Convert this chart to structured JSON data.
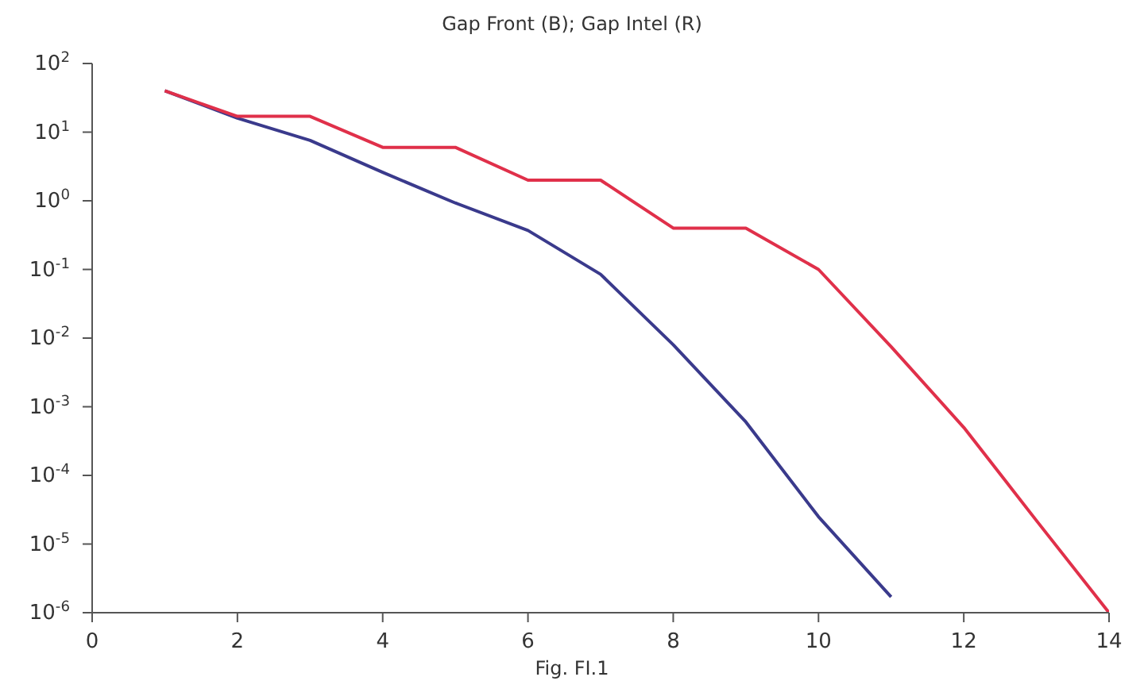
{
  "chart_data": {
    "type": "line",
    "title": "Gap Front (B); Gap Intel (R)",
    "xlabel": "Fig. FI.1",
    "log": "y",
    "grid": false,
    "marker": "none",
    "line_style": "solid",
    "xlim": [
      0,
      14
    ],
    "xticks": [
      0,
      2,
      4,
      6,
      8,
      10,
      12,
      14
    ],
    "ylim": [
      1e-06,
      100
    ],
    "yticks": [
      {
        "value": 1e-06,
        "label": "10$^{-6}$"
      },
      {
        "value": 1e-05,
        "label": "10$^{-5}$"
      },
      {
        "value": 0.0001,
        "label": "10$^{-4}$"
      },
      {
        "value": 0.001,
        "label": "10$^{-3}$"
      },
      {
        "value": 0.01,
        "label": "10$^{-2}$"
      },
      {
        "value": 0.1,
        "label": "10$^{-1}$"
      },
      {
        "value": 1,
        "label": "10$^{0}$"
      },
      {
        "value": 10,
        "label": "10$^{1}$"
      },
      {
        "value": 100,
        "label": "10$^{2}$"
      }
    ],
    "series": [
      {
        "color": "#3a3a8c",
        "x": [
          1,
          2,
          3,
          4,
          5,
          6,
          7,
          8,
          9,
          10,
          11
        ],
        "values": [
          40,
          16,
          7.6,
          2.6,
          0.93,
          0.37,
          0.085,
          0.008,
          0.0006,
          2.5e-05,
          1.7e-06
        ]
      },
      {
        "color": "#e0304a",
        "x": [
          1,
          2,
          3,
          4,
          5,
          6,
          7,
          8,
          9,
          10,
          11,
          12,
          13,
          14
        ],
        "values": [
          40,
          17,
          17,
          6,
          6,
          2,
          2,
          0.4,
          0.4,
          0.1,
          0.0075,
          0.0005,
          2.2e-05,
          1e-06
        ]
      }
    ]
  }
}
